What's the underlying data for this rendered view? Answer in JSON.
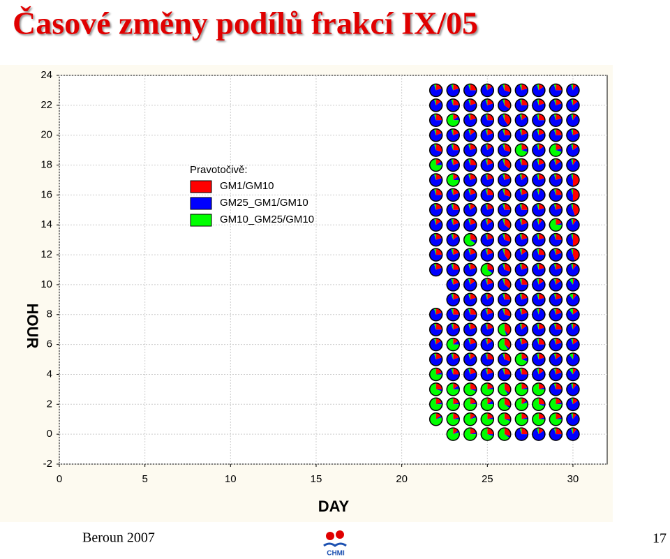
{
  "chart_data": {
    "type": "pie-grid",
    "title": "Časové změny podílů frakcí IX/05",
    "xlabel": "DAY",
    "ylabel": "HOUR",
    "legend_title": "Pravotočivě:",
    "xlim": [
      0,
      32
    ],
    "ylim": [
      -2,
      24
    ],
    "xticks": [
      0,
      5,
      10,
      15,
      20,
      25,
      30
    ],
    "yticks": [
      -2,
      0,
      2,
      4,
      6,
      8,
      10,
      12,
      14,
      16,
      18,
      20,
      22,
      24
    ],
    "grid": true,
    "x": [
      22,
      22,
      22,
      22,
      22,
      22,
      22,
      22,
      22,
      22,
      22,
      22,
      22,
      22,
      22,
      22,
      22,
      22,
      22,
      22,
      22,
      23,
      23,
      23,
      23,
      23,
      23,
      23,
      23,
      23,
      23,
      23,
      23,
      23,
      23,
      23,
      23,
      23,
      23,
      23,
      23,
      23,
      23,
      23,
      23,
      24,
      24,
      24,
      24,
      24,
      24,
      24,
      24,
      24,
      24,
      24,
      24,
      24,
      24,
      24,
      24,
      24,
      24,
      24,
      24,
      24,
      24,
      24,
      24,
      25,
      25,
      25,
      25,
      25,
      25,
      25,
      25,
      25,
      25,
      25,
      25,
      25,
      25,
      25,
      25,
      25,
      25,
      25,
      25,
      25,
      25,
      25,
      25,
      26,
      26,
      26,
      26,
      26,
      26,
      26,
      26,
      26,
      26,
      26,
      26,
      26,
      26,
      26,
      26,
      26,
      26,
      26,
      26,
      26,
      26,
      26,
      26,
      27,
      27,
      27,
      27,
      27,
      27,
      27,
      27,
      27,
      27,
      27,
      27,
      27,
      27,
      27,
      27,
      27,
      27,
      27,
      27,
      27,
      27,
      27,
      27,
      28,
      28,
      28,
      28,
      28,
      28,
      28,
      28,
      28,
      28,
      28,
      28,
      28,
      28,
      28,
      28,
      28,
      28,
      28,
      28,
      28,
      28,
      28,
      28,
      29,
      29,
      29,
      29,
      29,
      29,
      29,
      29,
      29,
      29,
      29,
      29,
      29,
      29,
      29,
      29,
      29,
      29,
      29,
      29,
      29,
      29,
      29,
      29,
      30,
      30,
      30,
      30,
      30,
      30,
      30,
      30,
      30,
      30,
      30,
      30,
      30,
      30,
      30,
      30,
      30,
      30,
      30,
      30,
      30,
      30,
      30,
      30
    ],
    "y": [
      23,
      22,
      21,
      20,
      19,
      18,
      17,
      16,
      15,
      14,
      13,
      12,
      11,
      8,
      7,
      6,
      5,
      4,
      3,
      2,
      1,
      23,
      22,
      21,
      20,
      19,
      18,
      17,
      16,
      15,
      14,
      13,
      12,
      11,
      10,
      9,
      8,
      7,
      6,
      5,
      4,
      3,
      2,
      1,
      0,
      23,
      22,
      21,
      20,
      19,
      18,
      17,
      16,
      15,
      14,
      13,
      12,
      11,
      10,
      9,
      8,
      7,
      6,
      5,
      4,
      3,
      2,
      1,
      0,
      23,
      22,
      21,
      20,
      19,
      18,
      17,
      16,
      15,
      14,
      13,
      12,
      11,
      10,
      9,
      8,
      7,
      6,
      5,
      4,
      3,
      2,
      1,
      0,
      23,
      22,
      21,
      20,
      19,
      18,
      17,
      16,
      15,
      14,
      13,
      12,
      11,
      10,
      9,
      8,
      7,
      6,
      5,
      4,
      3,
      2,
      1,
      0,
      23,
      22,
      21,
      20,
      19,
      18,
      17,
      16,
      15,
      14,
      13,
      12,
      11,
      10,
      9,
      8,
      7,
      6,
      5,
      4,
      3,
      2,
      1,
      0,
      23,
      22,
      21,
      20,
      19,
      18,
      17,
      16,
      15,
      14,
      13,
      12,
      11,
      10,
      9,
      8,
      7,
      6,
      5,
      4,
      3,
      2,
      1,
      0,
      23,
      22,
      21,
      20,
      19,
      18,
      17,
      16,
      15,
      14,
      13,
      12,
      11,
      10,
      9,
      8,
      7,
      6,
      5,
      4,
      3,
      2,
      1,
      0,
      23,
      22,
      21,
      20,
      19,
      18,
      17,
      16,
      15,
      14,
      13,
      12,
      11,
      10,
      9,
      8,
      7,
      6,
      5,
      4,
      3,
      2,
      1,
      0
    ],
    "series": [
      {
        "name": "GM1/GM10",
        "color": "#ff0000",
        "values": [
          20,
          15,
          25,
          20,
          30,
          15,
          20,
          25,
          20,
          15,
          20,
          25,
          20,
          20,
          25,
          15,
          20,
          20,
          25,
          20,
          15,
          20,
          25,
          15,
          20,
          25,
          20,
          15,
          20,
          25,
          20,
          15,
          20,
          25,
          20,
          20,
          25,
          20,
          15,
          20,
          25,
          15,
          20,
          20,
          15,
          25,
          20,
          20,
          15,
          20,
          25,
          20,
          20,
          15,
          20,
          25,
          20,
          20,
          15,
          20,
          25,
          20,
          20,
          15,
          20,
          25,
          20,
          15,
          20,
          15,
          20,
          25,
          20,
          15,
          20,
          20,
          25,
          20,
          15,
          20,
          20,
          25,
          20,
          15,
          20,
          20,
          15,
          25,
          20,
          20,
          15,
          20,
          25,
          30,
          35,
          40,
          25,
          30,
          35,
          20,
          30,
          25,
          35,
          30,
          40,
          30,
          35,
          25,
          30,
          40,
          35,
          30,
          25,
          35,
          30,
          25,
          30,
          20,
          25,
          15,
          20,
          20,
          25,
          15,
          20,
          25,
          20,
          20,
          15,
          20,
          25,
          20,
          20,
          15,
          20,
          20,
          25,
          20,
          15,
          20,
          25,
          15,
          20,
          25,
          20,
          15,
          20,
          20,
          5,
          20,
          10,
          20,
          25,
          20,
          15,
          20,
          5,
          20,
          25,
          20,
          15,
          20,
          25,
          20,
          15,
          25,
          20,
          20,
          25,
          20,
          15,
          20,
          25,
          20,
          20,
          25,
          20,
          20,
          15,
          20,
          20,
          25,
          20,
          15,
          20,
          25,
          20,
          20,
          25,
          10,
          15,
          10,
          20,
          15,
          10,
          50,
          50,
          45,
          10,
          50,
          45,
          10,
          5,
          10,
          15,
          10,
          15,
          5,
          10,
          10,
          15,
          10,
          10
        ]
      },
      {
        "name": "GM25_GM1/GM10",
        "color": "#0000ff",
        "values": [
          75,
          80,
          70,
          75,
          65,
          10,
          75,
          70,
          75,
          80,
          75,
          70,
          75,
          75,
          70,
          80,
          75,
          5,
          5,
          5,
          5,
          75,
          70,
          10,
          75,
          70,
          75,
          10,
          75,
          70,
          75,
          80,
          75,
          70,
          75,
          75,
          70,
          75,
          10,
          75,
          70,
          10,
          5,
          5,
          5,
          70,
          75,
          75,
          80,
          75,
          70,
          75,
          75,
          80,
          75,
          10,
          75,
          75,
          80,
          75,
          70,
          75,
          75,
          80,
          75,
          5,
          5,
          5,
          5,
          80,
          75,
          70,
          75,
          80,
          75,
          75,
          70,
          75,
          80,
          75,
          75,
          10,
          75,
          80,
          75,
          75,
          80,
          70,
          75,
          5,
          10,
          5,
          5,
          65,
          60,
          55,
          70,
          65,
          60,
          75,
          65,
          70,
          60,
          65,
          55,
          65,
          60,
          70,
          65,
          5,
          5,
          65,
          70,
          5,
          5,
          5,
          5,
          75,
          70,
          80,
          75,
          10,
          70,
          80,
          75,
          70,
          75,
          75,
          80,
          75,
          70,
          75,
          75,
          80,
          75,
          10,
          70,
          5,
          5,
          5,
          70,
          80,
          75,
          70,
          75,
          80,
          75,
          75,
          90,
          75,
          85,
          75,
          70,
          75,
          80,
          75,
          90,
          75,
          70,
          75,
          80,
          5,
          5,
          5,
          80,
          70,
          75,
          75,
          70,
          10,
          80,
          75,
          70,
          75,
          5,
          70,
          75,
          75,
          80,
          75,
          75,
          70,
          75,
          80,
          75,
          70,
          5,
          5,
          70,
          85,
          80,
          85,
          75,
          80,
          85,
          45,
          45,
          50,
          85,
          45,
          50,
          85,
          85,
          80,
          75,
          85,
          80,
          85,
          80,
          85,
          80,
          85,
          85
        ]
      },
      {
        "name": "GM10_GM25/GM10",
        "color": "#00ff00",
        "values": [
          5,
          5,
          5,
          5,
          5,
          75,
          5,
          5,
          5,
          5,
          5,
          5,
          5,
          5,
          5,
          5,
          5,
          75,
          70,
          75,
          80,
          5,
          5,
          75,
          5,
          5,
          5,
          75,
          5,
          5,
          5,
          5,
          5,
          5,
          5,
          5,
          5,
          5,
          75,
          5,
          5,
          75,
          75,
          75,
          80,
          5,
          5,
          5,
          5,
          5,
          5,
          5,
          5,
          5,
          5,
          65,
          5,
          5,
          5,
          5,
          5,
          5,
          5,
          5,
          5,
          70,
          75,
          80,
          75,
          5,
          5,
          5,
          5,
          5,
          5,
          5,
          5,
          5,
          5,
          5,
          5,
          65,
          5,
          5,
          5,
          5,
          5,
          5,
          5,
          75,
          75,
          75,
          70,
          5,
          5,
          5,
          5,
          5,
          5,
          5,
          5,
          5,
          5,
          5,
          5,
          5,
          5,
          5,
          5,
          55,
          60,
          5,
          5,
          60,
          65,
          70,
          65,
          5,
          5,
          5,
          5,
          70,
          5,
          5,
          5,
          5,
          5,
          5,
          5,
          5,
          5,
          5,
          5,
          5,
          5,
          70,
          5,
          75,
          80,
          75,
          5,
          5,
          5,
          5,
          5,
          5,
          5,
          5,
          5,
          5,
          5,
          5,
          5,
          5,
          5,
          5,
          5,
          5,
          5,
          5,
          5,
          75,
          70,
          75,
          5,
          5,
          5,
          5,
          5,
          70,
          5,
          5,
          5,
          5,
          75,
          5,
          5,
          5,
          5,
          5,
          5,
          5,
          5,
          5,
          5,
          5,
          75,
          75,
          5,
          5,
          5,
          5,
          5,
          5,
          5,
          5,
          5,
          5,
          5,
          5,
          5,
          5,
          10,
          10,
          10,
          5,
          5,
          10,
          10,
          5,
          5,
          5,
          5
        ]
      }
    ]
  },
  "footer": {
    "left": "Beroun 2007",
    "logo": "CHMI",
    "page": "17"
  }
}
